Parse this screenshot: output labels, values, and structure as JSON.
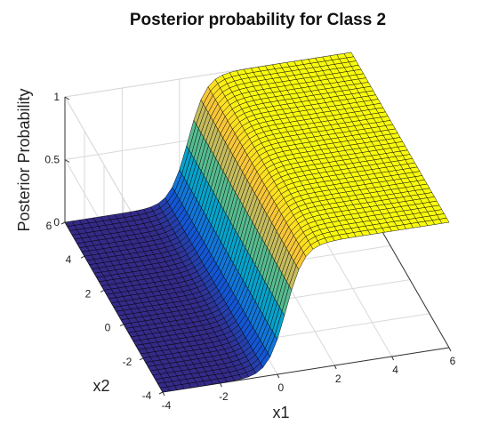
{
  "chart_data": {
    "type": "surface",
    "title": "Posterior probability for Class 2",
    "xlabel": "x1",
    "ylabel": "x2",
    "zlabel": "Posterior Probability",
    "xlim": [
      -4,
      6
    ],
    "ylim": [
      -4,
      6
    ],
    "zlim": [
      0,
      1
    ],
    "x_ticks": [
      {
        "value": -4,
        "label": "-4"
      },
      {
        "value": -2,
        "label": "-2"
      },
      {
        "value": 0,
        "label": "0"
      },
      {
        "value": 2,
        "label": "2"
      },
      {
        "value": 4,
        "label": "4"
      },
      {
        "value": 6,
        "label": "6"
      }
    ],
    "y_ticks": [
      {
        "value": -4,
        "label": "-4"
      },
      {
        "value": -2,
        "label": "-2"
      },
      {
        "value": 0,
        "label": "0"
      },
      {
        "value": 2,
        "label": "2"
      },
      {
        "value": 4,
        "label": "4"
      },
      {
        "value": 6,
        "label": "6"
      }
    ],
    "z_ticks": [
      {
        "value": 0,
        "label": "0"
      },
      {
        "value": 0.5,
        "label": "0.5"
      },
      {
        "value": 1,
        "label": "1"
      }
    ],
    "surface": {
      "function": "posterior = 1 / (1 + exp(-k * (x1 - c)))",
      "c": 0.3,
      "k": 3.2,
      "grid_step": 0.25,
      "colormap": "parula",
      "edge_color": "#000000"
    },
    "grid": true,
    "box": "back-planes",
    "colors": {
      "background": "#ffffff",
      "axis": "#333333",
      "grid": "#d9d9d9",
      "colormap_stops": [
        "#352a87",
        "#0f5cdd",
        "#1481d6",
        "#06a4ca",
        "#2eb7a4",
        "#87bf77",
        "#d1bb59",
        "#fec832",
        "#f9fb0e"
      ]
    }
  }
}
